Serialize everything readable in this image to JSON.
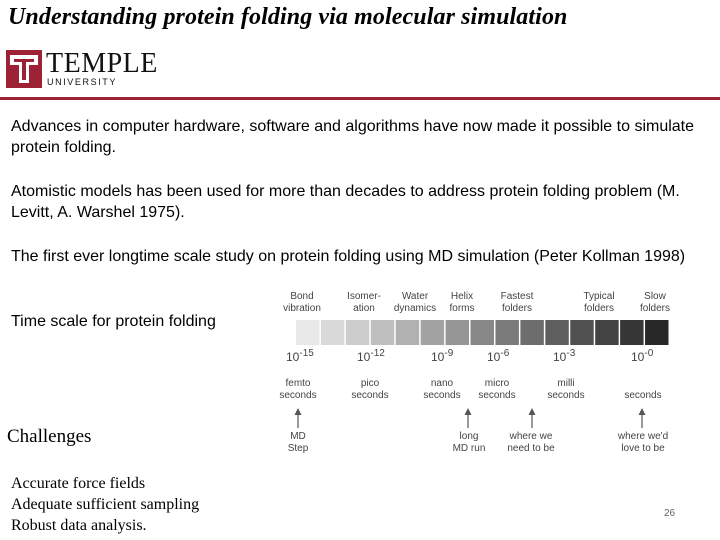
{
  "title": "Understanding protein folding via molecular simulation",
  "logo": {
    "name": "TEMPLE",
    "sub": "UNIVERSITY",
    "color": "#9d2235"
  },
  "paragraphs": [
    "Advances in computer hardware, software and algorithms  have now made it possible to simulate protein folding.",
    "Atomistic models has been used for more than decades to address protein folding problem (M. Levitt, A. Warshel 1975).",
    "The first ever longtime scale study on protein folding using MD simulation (Peter Kollman 1998)",
    "Time scale for protein folding"
  ],
  "figure": {
    "process_labels": [
      [
        "Bond",
        "vibration"
      ],
      [
        "Isomer-",
        "ation"
      ],
      [
        "Water",
        "dynamics"
      ],
      [
        "Helix",
        "forms"
      ],
      [
        "Fastest",
        "folders"
      ],
      [
        "Typical",
        "folders"
      ],
      [
        "Slow",
        "folders"
      ]
    ],
    "exponents": [
      "10-15",
      "10-12",
      "10-9",
      "10-6",
      "10-3",
      "10-0"
    ],
    "unit_labels": [
      [
        "femto",
        "seconds"
      ],
      [
        "pico",
        "seconds"
      ],
      [
        "nano",
        "seconds"
      ],
      [
        "micro",
        "seconds"
      ],
      [
        "milli",
        "seconds"
      ],
      [
        "",
        "seconds"
      ]
    ],
    "arrow_labels": [
      [
        "MD",
        "Step"
      ],
      [
        "long",
        "MD run"
      ],
      [
        "where we",
        "need to be"
      ],
      [
        "where we'd",
        "love to be"
      ]
    ]
  },
  "challenges": {
    "heading": "Challenges",
    "items": [
      "Accurate force fields",
      "Adequate sufficient sampling",
      "Robust data analysis."
    ]
  },
  "page_number": "26"
}
